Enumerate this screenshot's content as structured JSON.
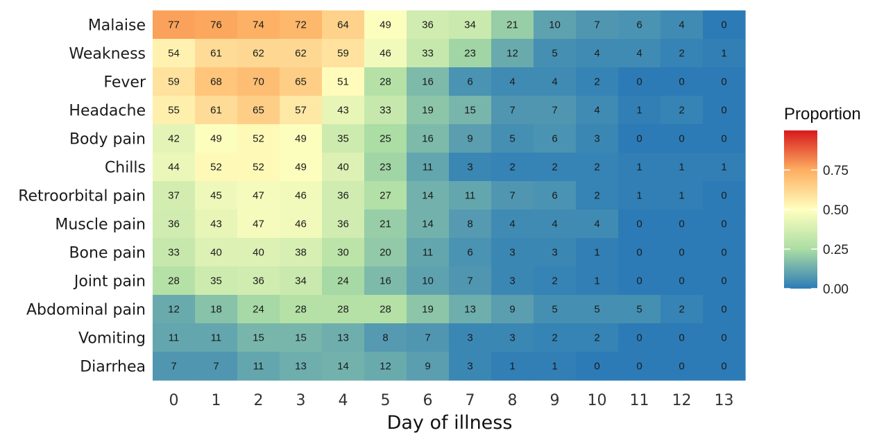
{
  "chart_data": {
    "type": "heatmap",
    "title": "",
    "xlabel": "Day of illness",
    "ylabel": "",
    "x": [
      "0",
      "1",
      "2",
      "3",
      "4",
      "5",
      "6",
      "7",
      "8",
      "9",
      "10",
      "11",
      "12",
      "13"
    ],
    "y": [
      "Malaise",
      "Weakness",
      "Fever",
      "Headache",
      "Body pain",
      "Chills",
      "Retroorbital pain",
      "Muscle pain",
      "Bone pain",
      "Joint pain",
      "Abdominal pain",
      "Vomiting",
      "Diarrhea"
    ],
    "values": [
      [
        77,
        76,
        74,
        72,
        64,
        49,
        36,
        34,
        21,
        10,
        7,
        6,
        4,
        0
      ],
      [
        54,
        61,
        62,
        62,
        59,
        46,
        33,
        23,
        12,
        5,
        4,
        4,
        2,
        1
      ],
      [
        59,
        68,
        70,
        65,
        51,
        28,
        16,
        6,
        4,
        4,
        2,
        0,
        0,
        0
      ],
      [
        55,
        61,
        65,
        57,
        43,
        33,
        19,
        15,
        7,
        7,
        4,
        1,
        2,
        0
      ],
      [
        42,
        49,
        52,
        49,
        35,
        25,
        16,
        9,
        5,
        6,
        3,
        0,
        0,
        0
      ],
      [
        44,
        52,
        52,
        49,
        40,
        23,
        11,
        3,
        2,
        2,
        2,
        1,
        1,
        1
      ],
      [
        37,
        45,
        47,
        46,
        36,
        27,
        14,
        11,
        7,
        6,
        2,
        1,
        1,
        0
      ],
      [
        36,
        43,
        47,
        46,
        36,
        21,
        14,
        8,
        4,
        4,
        4,
        0,
        0,
        0
      ],
      [
        33,
        40,
        40,
        38,
        30,
        20,
        11,
        6,
        3,
        3,
        1,
        0,
        0,
        0
      ],
      [
        28,
        35,
        36,
        34,
        24,
        16,
        10,
        7,
        3,
        2,
        1,
        0,
        0,
        0
      ],
      [
        12,
        18,
        24,
        28,
        28,
        28,
        19,
        13,
        9,
        5,
        5,
        5,
        2,
        0
      ],
      [
        11,
        11,
        15,
        15,
        13,
        8,
        7,
        3,
        3,
        2,
        2,
        0,
        0,
        0
      ],
      [
        7,
        7,
        11,
        13,
        14,
        12,
        9,
        3,
        1,
        1,
        0,
        0,
        0,
        0
      ]
    ],
    "colorbar": {
      "title": "Proportion",
      "ticks": [
        "0.00",
        "0.25",
        "0.50",
        "0.75"
      ],
      "tick_values": [
        0,
        0.25,
        0.5,
        0.75
      ],
      "range": [
        0,
        1
      ],
      "colors": [
        "#2c7bb6",
        "#abdda4",
        "#ffffbf",
        "#fdae61",
        "#d7191c"
      ],
      "placement": "right"
    },
    "grid": false
  }
}
